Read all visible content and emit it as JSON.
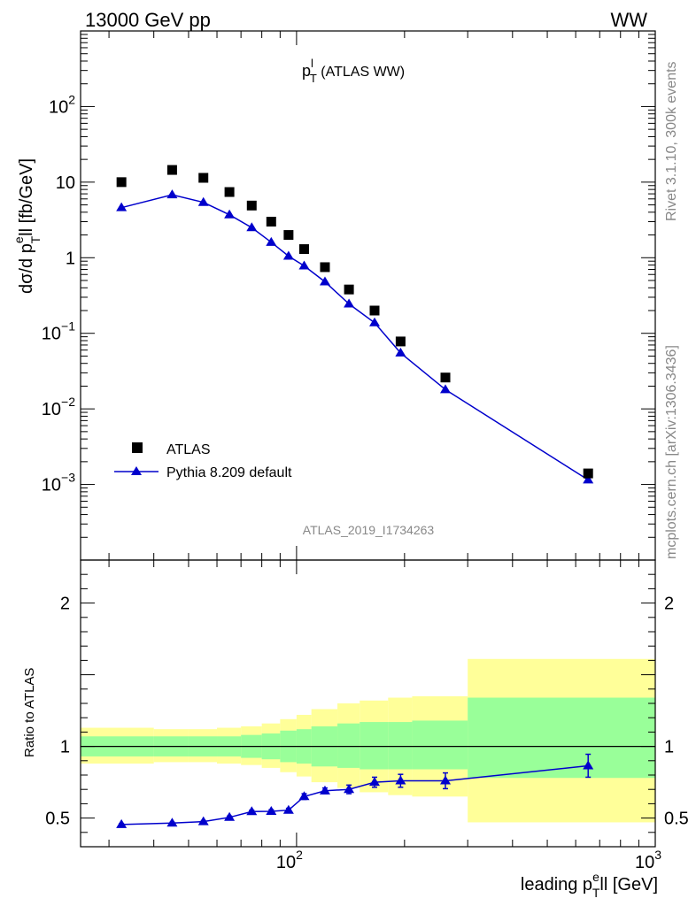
{
  "header": {
    "left": "13000 GeV pp",
    "right": "WW"
  },
  "side": {
    "rivet": "Rivet 3.1.10,  300k events",
    "mcplots": "mcplots.cern.ch [arXiv:1306.3436]"
  },
  "chart_data": [
    {
      "type": "scatter",
      "panel": "main",
      "title_main": "p",
      "title_sup": "l",
      "title_sub": "T",
      "title_rest": " (ATLAS WW)",
      "ylabel_parts": {
        "a": "dσ/d p",
        "sup": "e",
        "sub": "T",
        "b": "ll [fb/GeV]"
      },
      "xscale": "log",
      "yscale": "log",
      "xlim": [
        25,
        1000
      ],
      "ylim": [
        0.0001,
        1000
      ],
      "y_ticks": [
        {
          "value": 100,
          "base": "10",
          "exp": "2"
        },
        {
          "value": 10,
          "base": "10",
          "exp": ""
        },
        {
          "value": 1,
          "base": "1",
          "exp": ""
        },
        {
          "value": 0.1,
          "base": "10",
          "exp": "−1"
        },
        {
          "value": 0.01,
          "base": "10",
          "exp": "−2"
        },
        {
          "value": 0.001,
          "base": "10",
          "exp": "−3"
        }
      ],
      "watermark": "ATLAS_2019_I1734263",
      "legend_position": "bottom-left",
      "series": [
        {
          "name": "ATLAS",
          "marker": "square",
          "color": "#000000",
          "x": [
            32.5,
            45,
            55,
            65,
            75,
            85,
            95,
            105,
            120,
            140,
            165,
            195,
            260,
            650
          ],
          "y": [
            10.0,
            14.5,
            11.4,
            7.4,
            4.9,
            3.0,
            2.0,
            1.3,
            0.75,
            0.38,
            0.2,
            0.078,
            0.026,
            0.0014
          ]
        },
        {
          "name": "Pythia 8.209 default",
          "marker": "triangle",
          "color": "#0000cc",
          "x": [
            32.5,
            45,
            55,
            65,
            75,
            85,
            95,
            105,
            120,
            140,
            165,
            195,
            260,
            650
          ],
          "y": [
            4.6,
            6.8,
            5.4,
            3.7,
            2.5,
            1.6,
            1.05,
            0.78,
            0.48,
            0.245,
            0.138,
            0.055,
            0.018,
            0.00115
          ]
        }
      ]
    },
    {
      "type": "line",
      "panel": "ratio",
      "ylabel": "Ratio to ATLAS",
      "xlabel_parts": {
        "a": "leading p",
        "sup": "e",
        "sub": "T",
        "b": "ll [GeV]"
      },
      "xscale": "log",
      "xlim": [
        25,
        1000
      ],
      "ylim": [
        0.3,
        2.3
      ],
      "y_ticks": [
        {
          "value": 2,
          "label": "2"
        },
        {
          "value": 1,
          "label": "1"
        },
        {
          "value": 0.5,
          "label": "0.5"
        }
      ],
      "x_ticks": [
        {
          "value": 100,
          "base": "10",
          "exp": "2"
        },
        {
          "value": 1000,
          "base": "10",
          "exp": "3"
        }
      ],
      "bin_edges": [
        25,
        40,
        50,
        60,
        70,
        80,
        90,
        100,
        110,
        130,
        150,
        180,
        210,
        300,
        1000
      ],
      "band_outer": {
        "color": "#ffff99",
        "low": [
          0.88,
          0.89,
          0.89,
          0.88,
          0.87,
          0.85,
          0.82,
          0.79,
          0.75,
          0.71,
          0.68,
          0.66,
          0.65,
          0.47
        ],
        "high": [
          1.13,
          1.12,
          1.12,
          1.13,
          1.14,
          1.16,
          1.19,
          1.22,
          1.26,
          1.3,
          1.32,
          1.34,
          1.35,
          1.61
        ]
      },
      "band_inner": {
        "color": "#99ff99",
        "low": [
          0.93,
          0.93,
          0.93,
          0.93,
          0.92,
          0.91,
          0.89,
          0.88,
          0.86,
          0.85,
          0.84,
          0.84,
          0.84,
          0.78
        ],
        "high": [
          1.07,
          1.07,
          1.07,
          1.07,
          1.08,
          1.09,
          1.11,
          1.12,
          1.14,
          1.16,
          1.17,
          1.17,
          1.18,
          1.34
        ]
      },
      "reference": 1,
      "series": [
        {
          "name": "Pythia 8.209 default",
          "color": "#0000cc",
          "x": [
            32.5,
            45,
            55,
            65,
            75,
            85,
            95,
            105,
            120,
            140,
            165,
            195,
            260,
            650
          ],
          "y": [
            0.455,
            0.465,
            0.475,
            0.505,
            0.545,
            0.547,
            0.555,
            0.65,
            0.69,
            0.7,
            0.75,
            0.76,
            0.76,
            0.865
          ],
          "err": [
            0.006,
            0.006,
            0.007,
            0.009,
            0.01,
            0.011,
            0.013,
            0.02,
            0.02,
            0.03,
            0.035,
            0.045,
            0.055,
            0.08
          ]
        }
      ]
    }
  ]
}
